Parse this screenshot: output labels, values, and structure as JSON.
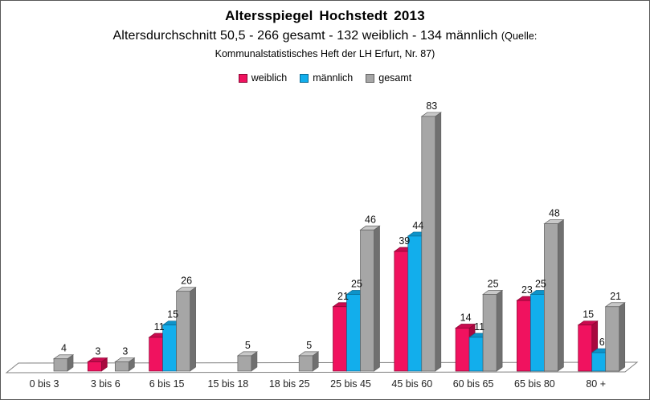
{
  "title": "Altersspiegel Hochstedt 2013",
  "subtitle_main": "Altersdurchschnitt 50,5 - 266 gesamt - 132 weiblich - 134 männlich",
  "subtitle_source_prefix": "(Quelle:",
  "subtitle_source_line2": "Kommunalstatistisches Heft der LH Erfurt, Nr. 87)",
  "colors": {
    "frame_border": "#585858",
    "background": "#ffffff",
    "floor_stroke": "#808080",
    "value_label": "#111111",
    "category_label": "#1f1f1f"
  },
  "chart_data": {
    "type": "bar",
    "style": "3d-clustered",
    "title": "Altersspiegel Hochstedt 2013",
    "subtitle": "Altersdurchschnitt 50,5 - 266 gesamt - 132 weiblich - 134 männlich (Quelle: Kommunalstatistisches Heft der LH Erfurt, Nr. 87)",
    "legend_position": "top",
    "grid": false,
    "y_axis_visible": false,
    "data_labels": true,
    "ylim": [
      0,
      90
    ],
    "categories": [
      "0 bis 3",
      "3 bis 6",
      "6 bis 15",
      "15 bis 18",
      "18 bis 25",
      "25 bis 45",
      "45 bis 60",
      "60 bis 65",
      "65 bis 80",
      "80 +"
    ],
    "series": [
      {
        "name": "weiblich",
        "color": "#F0125F",
        "color_top": "#C90B4F",
        "color_side": "#A8093F",
        "color_edge": "#8A0734",
        "values": [
          null,
          3,
          11,
          null,
          null,
          21,
          39,
          14,
          23,
          15
        ]
      },
      {
        "name": "männlich",
        "color": "#12AEEC",
        "color_top": "#0D93C9",
        "color_side": "#0B7BA9",
        "color_edge": "#0A6A93",
        "values": [
          null,
          null,
          15,
          null,
          null,
          25,
          44,
          11,
          25,
          6
        ]
      },
      {
        "name": "gesamt",
        "color": "#A6A6A6",
        "color_top": "#C8C8C8",
        "color_side": "#707070",
        "color_edge": "#616161",
        "values": [
          4,
          3,
          26,
          5,
          5,
          46,
          83,
          25,
          48,
          21
        ]
      }
    ]
  }
}
